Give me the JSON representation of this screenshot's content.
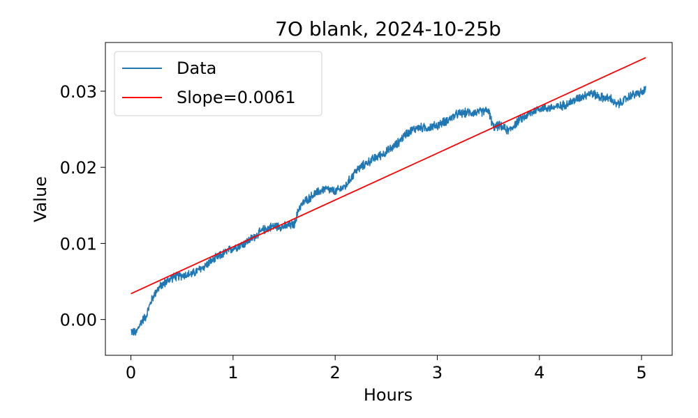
{
  "chart_data": {
    "type": "line",
    "title": "7O blank, 2024-10-25b",
    "xlabel": "Hours",
    "ylabel": "Value",
    "xlim": [
      -0.25,
      5.3
    ],
    "ylim": [
      -0.0047,
      0.0364
    ],
    "xticks": [
      0,
      1,
      2,
      3,
      4,
      5
    ],
    "xtick_labels": [
      "0",
      "1",
      "2",
      "3",
      "4",
      "5"
    ],
    "yticks": [
      0.0,
      0.01,
      0.02,
      0.03
    ],
    "ytick_labels": [
      "0.00",
      "0.01",
      "0.02",
      "0.03"
    ],
    "grid": false,
    "legend_position": "top-left",
    "series": [
      {
        "name": "Data",
        "color": "#1f77b4",
        "style": "solid",
        "x": [
          0.0,
          0.05,
          0.1,
          0.15,
          0.2,
          0.25,
          0.3,
          0.4,
          0.5,
          0.6,
          0.7,
          0.8,
          0.9,
          1.0,
          1.1,
          1.2,
          1.3,
          1.4,
          1.5,
          1.6,
          1.65,
          1.7,
          1.8,
          1.9,
          2.0,
          2.1,
          2.2,
          2.3,
          2.4,
          2.5,
          2.6,
          2.7,
          2.8,
          2.9,
          3.0,
          3.1,
          3.2,
          3.3,
          3.4,
          3.5,
          3.55,
          3.6,
          3.7,
          3.8,
          3.9,
          4.0,
          4.1,
          4.2,
          4.3,
          4.4,
          4.5,
          4.6,
          4.7,
          4.75,
          4.8,
          4.9,
          5.0,
          5.04
        ],
        "y": [
          -0.0015,
          -0.0018,
          -0.0003,
          0.0005,
          0.0025,
          0.0038,
          0.0045,
          0.0055,
          0.0058,
          0.006,
          0.0068,
          0.0078,
          0.0086,
          0.0094,
          0.0099,
          0.0108,
          0.0118,
          0.0123,
          0.0122,
          0.0125,
          0.0148,
          0.0155,
          0.0165,
          0.0172,
          0.0168,
          0.0175,
          0.0195,
          0.0205,
          0.0213,
          0.022,
          0.023,
          0.0245,
          0.0252,
          0.0252,
          0.0255,
          0.0262,
          0.027,
          0.0272,
          0.0272,
          0.0275,
          0.0252,
          0.0255,
          0.0248,
          0.0262,
          0.027,
          0.0278,
          0.0278,
          0.028,
          0.0285,
          0.0292,
          0.0298,
          0.0292,
          0.029,
          0.0282,
          0.0285,
          0.0295,
          0.0298,
          0.0302
        ],
        "noise_amplitude": 0.0007
      },
      {
        "name": "Slope=0.0061",
        "color": "#ff0000",
        "style": "solid",
        "x": [
          0.0,
          5.04
        ],
        "y": [
          0.0034,
          0.0344
        ]
      }
    ]
  }
}
